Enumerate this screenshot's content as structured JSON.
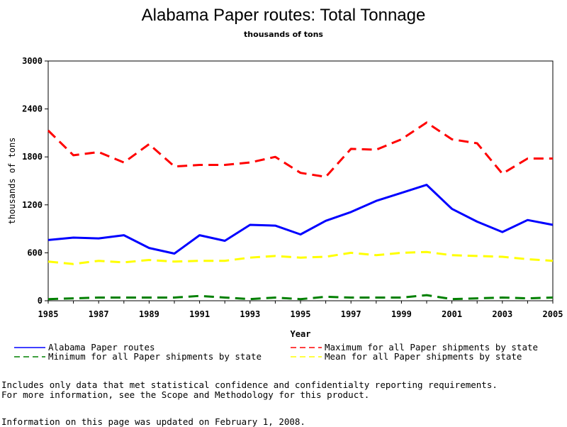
{
  "chart_data": {
    "type": "line",
    "title": "Alabama Paper routes: Total Tonnage",
    "subtitle": "thousands of tons",
    "xlabel": "Year",
    "ylabel": "thousands of tons",
    "xlim": [
      1985,
      2005
    ],
    "ylim": [
      0,
      3000
    ],
    "x_ticks": [
      "1985",
      "1987",
      "1989",
      "1991",
      "1993",
      "1995",
      "1997",
      "1999",
      "2001",
      "2003",
      "2005"
    ],
    "y_ticks": [
      "0",
      "600",
      "1200",
      "1800",
      "2400",
      "3000"
    ],
    "x": [
      1985,
      1986,
      1987,
      1988,
      1989,
      1990,
      1991,
      1992,
      1993,
      1994,
      1995,
      1996,
      1997,
      1998,
      1999,
      2000,
      2001,
      2002,
      2003,
      2004,
      2005
    ],
    "series": [
      {
        "name": "Alabama Paper routes",
        "color": "#0000ff",
        "dash": "solid",
        "values": [
          760,
          790,
          780,
          820,
          660,
          590,
          820,
          750,
          950,
          940,
          830,
          1000,
          1110,
          1250,
          1350,
          1450,
          1150,
          990,
          860,
          1010,
          950
        ]
      },
      {
        "name": "Maximum for all Paper shipments by state",
        "color": "#ff0000",
        "dash": "dashed",
        "values": [
          2130,
          1820,
          1860,
          1730,
          1960,
          1680,
          1700,
          1700,
          1730,
          1800,
          1600,
          1550,
          1900,
          1890,
          2020,
          2230,
          2020,
          1970,
          1590,
          1780,
          1780
        ]
      },
      {
        "name": "Minimum for all Paper shipments by state",
        "color": "#008000",
        "dash": "dashed",
        "values": [
          20,
          30,
          40,
          40,
          40,
          40,
          60,
          40,
          20,
          40,
          20,
          50,
          40,
          40,
          40,
          70,
          20,
          30,
          40,
          30,
          40
        ]
      },
      {
        "name": "Mean for all Paper shipments by state",
        "color": "#ffff00",
        "dash": "dashed",
        "values": [
          490,
          460,
          500,
          480,
          510,
          490,
          500,
          500,
          540,
          560,
          540,
          550,
          600,
          570,
          600,
          610,
          570,
          560,
          550,
          520,
          500
        ]
      }
    ],
    "legend_position": "bottom"
  },
  "footnotes": {
    "line1": "Includes only data that met statistical confidence and confidentialty reporting requirements.",
    "line2": "For more information, see the Scope and Methodology for this product.",
    "line3": "Information on this page was updated on February 1, 2008."
  }
}
